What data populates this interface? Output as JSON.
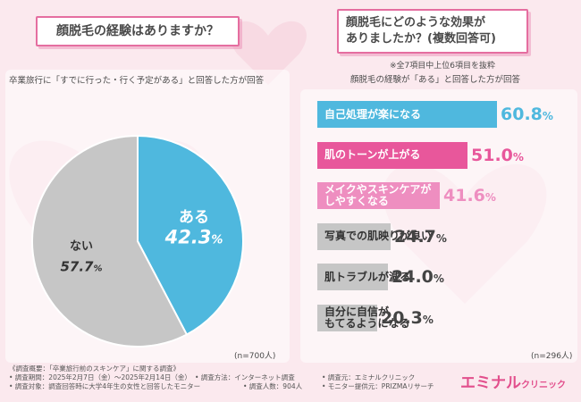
{
  "question1": {
    "title": "顔脱毛の経験はありますか？",
    "note": "卒業旅行に「すでに行った・行く予定がある」と回答した方が回答",
    "n": "(n=700人)"
  },
  "question2": {
    "title_line1": "顔脱毛にどのような効果が",
    "title_line2": "ありましたか？(複数回答可)",
    "note1": "※全7項目中上位6項目を抜粋",
    "note2": "顔脱毛の経験が「ある」と回答した方が回答",
    "n": "(n=296人)"
  },
  "colors": {
    "blue": "#4fb8de",
    "pink": "#e8579b",
    "light_pink": "#ee8ec0",
    "gray": "#c6c6c6",
    "title_border": "#e56ea0",
    "brand": "#e24f8c"
  },
  "chart_data": [
    {
      "type": "pie",
      "title": "顔脱毛の経験はありますか？",
      "slices": [
        {
          "label": "ある",
          "value": 42.3,
          "value_text": "42.3",
          "unit": "%",
          "color": "#4fb8de"
        },
        {
          "label": "ない",
          "value": 57.7,
          "value_text": "57.7",
          "unit": "%",
          "color": "#c6c6c6"
        }
      ]
    },
    {
      "type": "bar",
      "orientation": "horizontal",
      "title": "顔脱毛にどのような効果がありましたか？(複数回答可)",
      "xlim": [
        0,
        100
      ],
      "categories": [
        "自己処理が楽になる",
        "肌のトーンが上がる",
        "メイクやスキンケアがしやすくなる",
        "写真での肌映りが良い",
        "肌トラブルが減る",
        "自分に自信がもてるようになる"
      ],
      "label_lines": [
        [
          "自己処理が楽になる"
        ],
        [
          "肌のトーンが上がる"
        ],
        [
          "メイクやスキンケアが",
          "しやすくなる"
        ],
        [
          "写真での肌映りが良い"
        ],
        [
          "肌トラブルが減る"
        ],
        [
          "自分に自信が",
          "もてるようになる"
        ]
      ],
      "values": [
        60.8,
        51.0,
        41.6,
        24.7,
        24.0,
        20.3
      ],
      "value_texts": [
        "60.8",
        "51.0",
        "41.6",
        "24.7",
        "24.0",
        "20.3"
      ],
      "unit": "%",
      "bar_colors": [
        "#4fb8de",
        "#e8579b",
        "#ee8ec0",
        "#c6c6c6",
        "#c6c6c6",
        "#c6c6c6"
      ],
      "text_colors": [
        "#ffffff",
        "#ffffff",
        "#ffffff",
        "#333333",
        "#333333",
        "#333333"
      ],
      "pct_colors": [
        "#4fb8de",
        "#e8579b",
        "#ee8ec0",
        "#444444",
        "#444444",
        "#444444"
      ]
    }
  ],
  "footer": {
    "r1c1": "《調査概要：「卒業旅行前のスキンケア」に関する調査》",
    "r2c1": "• 調査期間：2025年2月7日（金）〜2025年2月14日（金）",
    "r2c2": "• 調査方法：インターネット調査",
    "r2c3": "• 調査元：エミナルクリニック",
    "r3c1": "• 調査対象：調査回答時に大学4年生の女性と回答したモニター",
    "r3c2": "• 調査人数：904人",
    "r3c3": "• モニター提供元：PRIZMAリサーチ"
  },
  "brand": {
    "name": "エミナル",
    "sub": "クリニック"
  }
}
